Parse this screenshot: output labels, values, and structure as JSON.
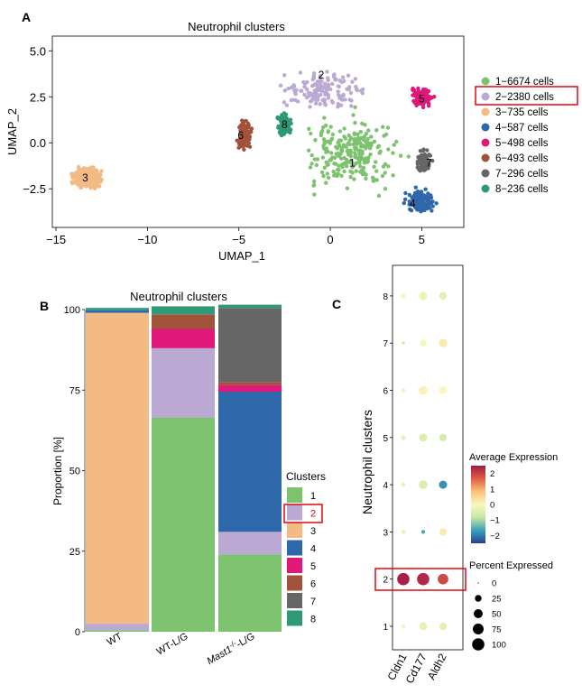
{
  "panels": {
    "a": "A",
    "b": "B",
    "c": "C"
  },
  "chart_data": [
    {
      "type": "scatter",
      "id": "umap",
      "title": "Neutrophil clusters",
      "xlabel": "UMAP_1",
      "ylabel": "UMAP_2",
      "xlim": [
        -15.2,
        7.3
      ],
      "ylim": [
        -4.6,
        5.8
      ],
      "xticks": [
        -15,
        -10,
        -5,
        0,
        5
      ],
      "xtick_labels": [
        "−15",
        "−10",
        "−5",
        "0",
        "5"
      ],
      "yticks": [
        -2.5,
        0.0,
        2.5,
        5.0
      ],
      "ytick_labels": [
        "−2.5",
        "0.0",
        "2.5",
        "5.0"
      ],
      "clusters": [
        {
          "id": "1",
          "color": "#7dc26f",
          "centroid": [
            1.2,
            -0.6
          ],
          "spread": [
            2.6,
            1.9
          ],
          "legend": "1−6674  cells"
        },
        {
          "id": "2",
          "color": "#bba8d3",
          "centroid": [
            -0.3,
            2.9
          ],
          "spread": [
            2.2,
            1.0
          ],
          "legend": "2−2380  cells"
        },
        {
          "id": "3",
          "color": "#f3ba84",
          "centroid": [
            -13.3,
            -1.9
          ],
          "spread": [
            0.7,
            0.5
          ],
          "legend": "3−735  cells"
        },
        {
          "id": "4",
          "color": "#2f67ab",
          "centroid": [
            4.9,
            -3.2
          ],
          "spread": [
            0.7,
            0.6
          ],
          "legend": "4−587  cells"
        },
        {
          "id": "5",
          "color": "#e0187a",
          "centroid": [
            5.0,
            2.5
          ],
          "spread": [
            0.55,
            0.5
          ],
          "legend": "5−498  cells"
        },
        {
          "id": "6",
          "color": "#a1523a",
          "centroid": [
            -4.7,
            0.5
          ],
          "spread": [
            0.4,
            0.9
          ],
          "legend": "6−493  cells"
        },
        {
          "id": "7",
          "color": "#666666",
          "centroid": [
            5.1,
            -1.0
          ],
          "spread": [
            0.4,
            0.6
          ],
          "legend": "7−296  cells"
        },
        {
          "id": "8",
          "color": "#2d9977",
          "centroid": [
            -2.5,
            1.0
          ],
          "spread": [
            0.4,
            0.6
          ],
          "legend": "8−236  cells"
        }
      ],
      "cluster_labels": [
        {
          "text": "1",
          "pos": [
            1.2,
            -1.1
          ]
        },
        {
          "text": "2",
          "pos": [
            -0.5,
            3.7
          ]
        },
        {
          "text": "3",
          "pos": [
            -13.4,
            -1.9
          ]
        },
        {
          "text": "4",
          "pos": [
            4.5,
            -3.3
          ]
        },
        {
          "text": "5",
          "pos": [
            5.0,
            2.4
          ]
        },
        {
          "text": "6",
          "pos": [
            -4.9,
            0.4
          ]
        },
        {
          "text": "7",
          "pos": [
            5.4,
            -1.1
          ]
        },
        {
          "text": "8",
          "pos": [
            -2.5,
            1.0
          ]
        }
      ],
      "highlighted_legend": 1
    },
    {
      "type": "bar",
      "stacked": true,
      "id": "proportion",
      "title": "Neutrophil clusters",
      "ylabel": "Proportion [%]",
      "ylim": [
        0,
        100
      ],
      "yticks": [
        0,
        25,
        50,
        75,
        100
      ],
      "categories": [
        "WT",
        "WT-L/G",
        "Mast1-/- L/G"
      ],
      "category_display": [
        {
          "main": "WT",
          "sup": "",
          "rest": ""
        },
        {
          "main": "WT-L/G",
          "sup": "",
          "rest": ""
        },
        {
          "main": "Mast1",
          "sup": "-/-",
          "rest": "-L/G"
        }
      ],
      "legend_title": "Clusters",
      "highlighted_legend": 1,
      "series": [
        {
          "name": "1",
          "color": "#7dc26f",
          "values": [
            0.5,
            66.5,
            24.0
          ]
        },
        {
          "name": "2",
          "color": "#bba8d3",
          "values": [
            2.0,
            21.5,
            7.0
          ]
        },
        {
          "name": "3",
          "color": "#f3ba84",
          "values": [
            96.5,
            0.0,
            0.0
          ]
        },
        {
          "name": "4",
          "color": "#2f67ab",
          "values": [
            0.8,
            0.0,
            43.5
          ]
        },
        {
          "name": "5",
          "color": "#e0187a",
          "values": [
            0.0,
            6.0,
            2.0
          ]
        },
        {
          "name": "6",
          "color": "#a1523a",
          "values": [
            0.0,
            4.5,
            1.0
          ]
        },
        {
          "name": "7",
          "color": "#666666",
          "values": [
            0.0,
            0.0,
            23.0
          ]
        },
        {
          "name": "8",
          "color": "#2d9977",
          "values": [
            0.7,
            2.5,
            1.0
          ]
        }
      ]
    },
    {
      "type": "scatter",
      "subtype": "dotplot",
      "id": "dotplot",
      "ylabel": "Neutrophil clusters",
      "genes": [
        "Cldn1",
        "Cd177",
        "Aldh2"
      ],
      "clusters": [
        "1",
        "2",
        "3",
        "4",
        "5",
        "6",
        "7",
        "8"
      ],
      "avg_expression": [
        [
          -0.1,
          -0.3,
          -0.4
        ],
        [
          2.4,
          2.3,
          1.9
        ],
        [
          0.2,
          -1.6,
          0.2
        ],
        [
          -0.3,
          -0.5,
          -1.8
        ],
        [
          -0.3,
          -0.5,
          -0.6
        ],
        [
          -0.2,
          0.1,
          0.0
        ],
        [
          -0.6,
          -0.1,
          0.2
        ],
        [
          0.0,
          -0.2,
          -0.4
        ]
      ],
      "pct_expressed": [
        [
          8,
          38,
          32
        ],
        [
          100,
          100,
          72
        ],
        [
          8,
          6,
          30
        ],
        [
          8,
          46,
          40
        ],
        [
          10,
          38,
          32
        ],
        [
          8,
          46,
          38
        ],
        [
          4,
          24,
          42
        ],
        [
          14,
          44,
          34
        ]
      ],
      "highlighted_row": "2",
      "color_legend": {
        "title": "Average Expression",
        "ticks": [
          "2",
          "1",
          "0",
          "−1",
          "−2"
        ],
        "tick_values": [
          2,
          1,
          0,
          -1,
          -2
        ],
        "range": [
          -2.5,
          2.5
        ],
        "colors": [
          "#2d3d93",
          "#3ca0b8",
          "#c6e6a4",
          "#fbf7be",
          "#fcc27a",
          "#e15d45",
          "#a01847"
        ]
      },
      "size_legend": {
        "title": "Percent Expressed",
        "ticks": [
          "0",
          "25",
          "50",
          "75",
          "100"
        ],
        "tick_values": [
          0,
          25,
          50,
          75,
          100
        ]
      }
    }
  ]
}
